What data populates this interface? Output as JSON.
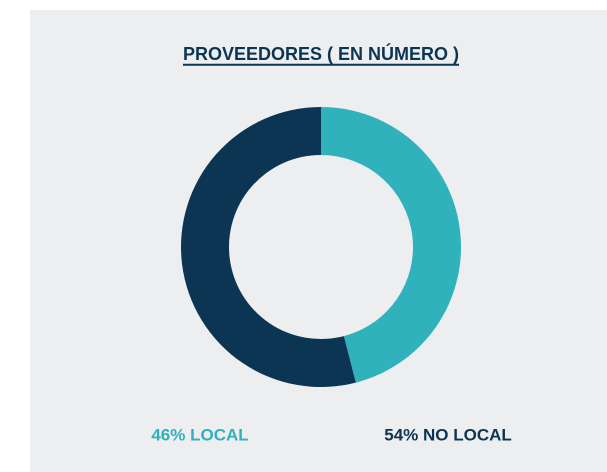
{
  "chart_data": {
    "type": "donut",
    "title": "PROVEEDORES ( EN NÚMERO )",
    "categories": [
      "LOCAL",
      "NO LOCAL"
    ],
    "values": [
      46,
      54
    ],
    "value_labels": [
      "46% LOCAL",
      "54% NO LOCAL"
    ],
    "colors": [
      "#2fb2bc",
      "#0b3552"
    ]
  }
}
